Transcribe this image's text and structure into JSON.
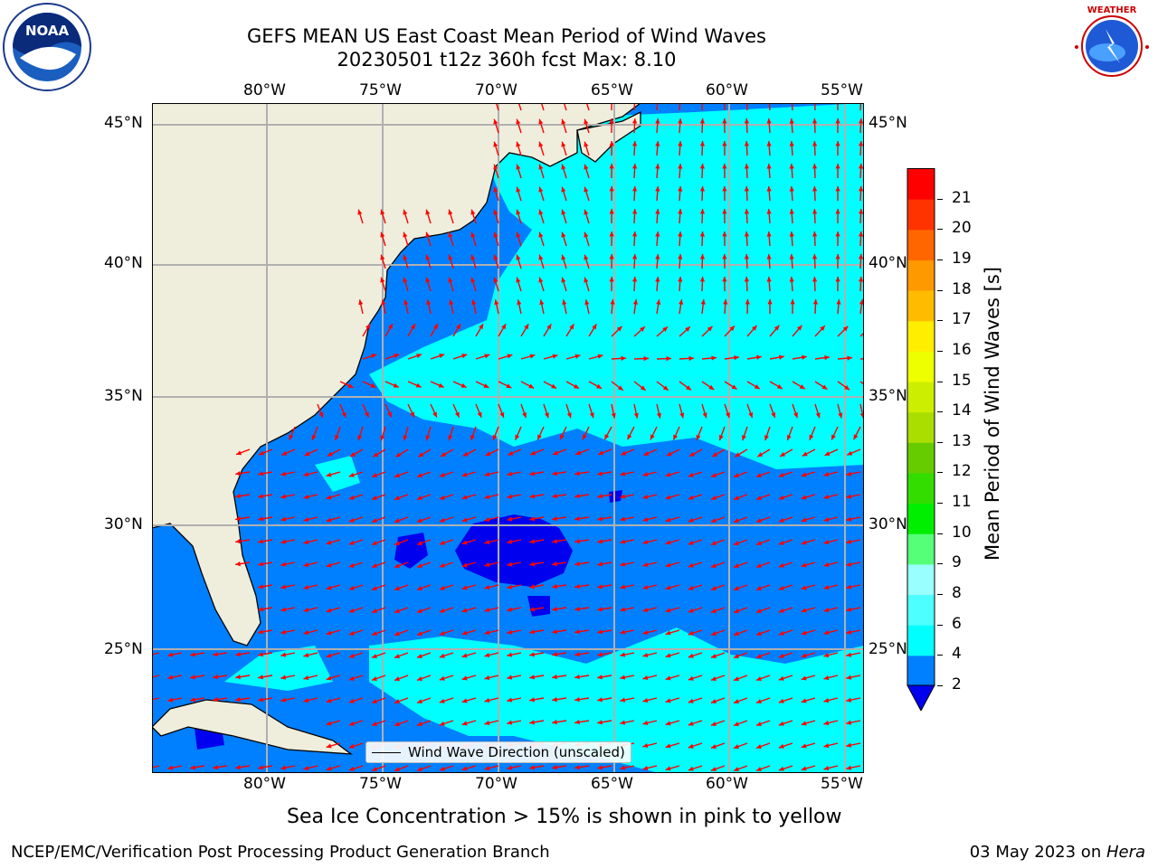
{
  "title": {
    "line1": "GEFS MEAN US East Coast Mean Period of Wind Waves",
    "line2": "20230501 t12z 360h fcst   Max: 8.10"
  },
  "logos": {
    "left": "NOAA",
    "left_ring": "NATIONAL OCEANIC AND ATMOSPHERIC ADMINISTRATION · U.S. DEPARTMENT OF COMMERCE",
    "right": "NATIONAL WEATHER SERVICE"
  },
  "map": {
    "lon_labels": [
      "80°W",
      "75°W",
      "70°W",
      "65°W",
      "60°W",
      "55°W"
    ],
    "lat_labels": [
      "45°N",
      "40°N",
      "35°N",
      "30°N",
      "25°N"
    ],
    "legend": "Wind Wave Direction (unscaled)",
    "colors": {
      "land": "#efeedd",
      "ocean_2_4": "#0080ff",
      "ocean_4_6": "#00ffff",
      "ocean_below_2": "#0000ee",
      "arrows": "#ff0000",
      "grid": "#b0b0b0"
    }
  },
  "colorbar": {
    "label": "Mean Period of Wind Waves [s]",
    "ticks": [
      "2",
      "4",
      "6",
      "8",
      "9",
      "10",
      "11",
      "12",
      "13",
      "14",
      "15",
      "16",
      "17",
      "18",
      "19",
      "20",
      "21"
    ],
    "colors": [
      "#0080ff",
      "#00ffff",
      "#4dffff",
      "#99ffff",
      "#55ff77",
      "#00ee00",
      "#33dd00",
      "#66cc00",
      "#aadd00",
      "#ccee00",
      "#eeff00",
      "#ffee00",
      "#ffbb00",
      "#ff9900",
      "#ff6600",
      "#ff3300",
      "#ff0000"
    ],
    "under_color": "#0000ee"
  },
  "caption": "Sea Ice Concentration > 15% is shown in pink to yellow",
  "footer": {
    "left": "NCEP/EMC/Verification Post Processing Product Generation Branch",
    "right_date": "03 May 2023 on ",
    "right_host": "Hera"
  }
}
